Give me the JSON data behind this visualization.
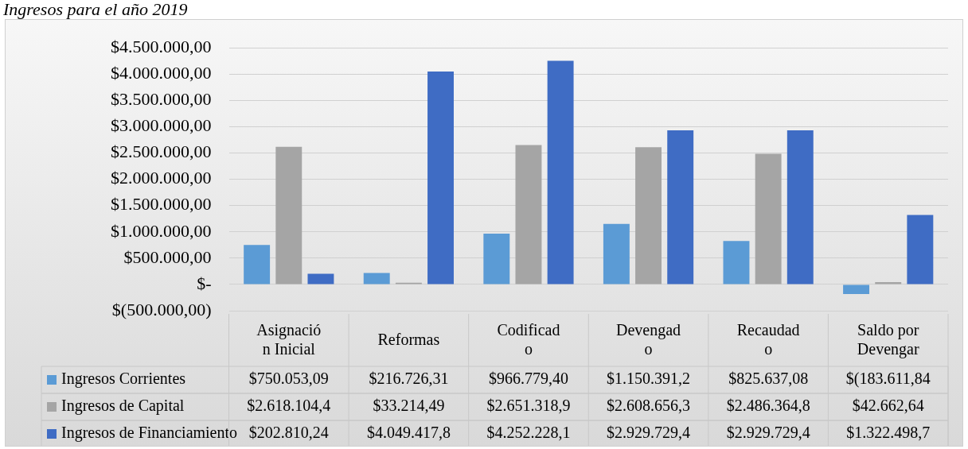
{
  "chart_data": {
    "type": "bar",
    "title": "Ingresos para el año 2019",
    "categories": [
      "Asignación Inicial",
      "Reformas",
      "Codificado",
      "Devengado",
      "Recaudado",
      "Saldo por Devengar"
    ],
    "series": [
      {
        "name": "Ingresos Corrientes",
        "color": "#5b9bd5",
        "values": [
          750053.09,
          216726.31,
          966779.4,
          1150391.2,
          825637.08,
          -183611.84
        ],
        "value_labels": [
          "$750.053,09",
          "$216.726,31",
          "$966.779,40",
          "$1.150.391,2",
          "$825.637,08",
          "$(183.611,84"
        ]
      },
      {
        "name": "Ingresos de Capital",
        "color": "#a5a5a5",
        "values": [
          2618104.4,
          33214.49,
          2651318.9,
          2608656.3,
          2486364.8,
          42662.64
        ],
        "value_labels": [
          "$2.618.104,4",
          "$33.214,49",
          "$2.651.318,9",
          "$2.608.656,3",
          "$2.486.364,8",
          "$42.662,64"
        ]
      },
      {
        "name": "Ingresos de Financiamiento",
        "color": "#3f6cc4",
        "values": [
          202810.24,
          4049417.8,
          4252228.1,
          2929729.4,
          2929729.4,
          1322498.7
        ],
        "value_labels": [
          "$202.810,24",
          "$4.049.417,8",
          "$4.252.228,1",
          "$2.929.729,4",
          "$2.929.729,4",
          "$1.322.498,7"
        ]
      }
    ],
    "ylim": [
      -500000,
      4500000
    ],
    "yticks": [
      {
        "value": -500000,
        "label": "$(500.000,00)"
      },
      {
        "value": 0,
        "label": "$-"
      },
      {
        "value": 500000,
        "label": "$500.000,00"
      },
      {
        "value": 1000000,
        "label": "$1.000.000,00"
      },
      {
        "value": 1500000,
        "label": "$1.500.000,00"
      },
      {
        "value": 2000000,
        "label": "$2.000.000,00"
      },
      {
        "value": 2500000,
        "label": "$2.500.000,00"
      },
      {
        "value": 3000000,
        "label": "$3.000.000,00"
      },
      {
        "value": 3500000,
        "label": "$3.500.000,00"
      },
      {
        "value": 4000000,
        "label": "$4.000.000,00"
      },
      {
        "value": 4500000,
        "label": "$4.500.000,00"
      }
    ],
    "grid": "y",
    "legend": "bottom",
    "data_labels": true
  }
}
